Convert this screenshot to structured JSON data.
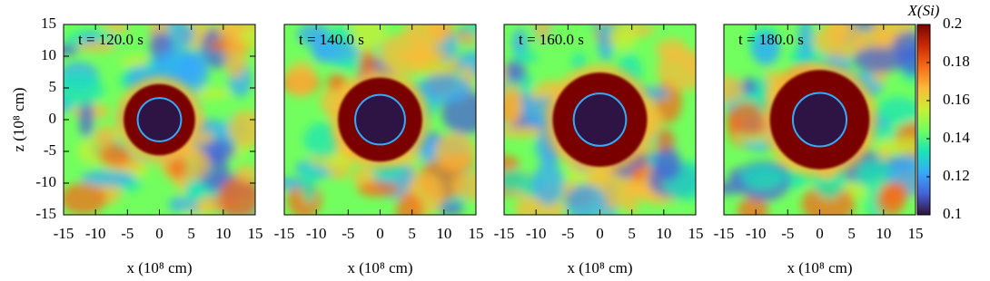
{
  "chart_data": [
    {
      "type": "heatmap",
      "annotation": "t = 120.0 s",
      "xlabel": "x (10⁸ cm)",
      "ylabel": "z (10⁸ cm)",
      "xlim": [
        -15,
        15
      ],
      "xticks": [
        -15,
        -10,
        -5,
        0,
        5,
        10,
        15
      ],
      "ylim": [
        -15,
        15
      ],
      "yticks": [
        -15,
        -10,
        -5,
        0,
        5,
        10,
        15
      ]
    },
    {
      "type": "heatmap",
      "annotation": "t = 140.0 s",
      "xlabel": "x (10⁸ cm)",
      "xlim": [
        -15,
        15
      ],
      "xticks": [
        -15,
        -10,
        -5,
        0,
        5,
        10,
        15
      ],
      "ylim": [
        -15,
        15
      ]
    },
    {
      "type": "heatmap",
      "annotation": "t = 160.0 s",
      "xlabel": "x (10⁸ cm)",
      "xlim": [
        -15,
        15
      ],
      "xticks": [
        -15,
        -10,
        -5,
        0,
        5,
        10,
        15
      ],
      "ylim": [
        -15,
        15
      ]
    },
    {
      "type": "heatmap",
      "annotation": "t = 180.0 s",
      "xlabel": "x (10⁸ cm)",
      "xlim": [
        -15,
        15
      ],
      "xticks": [
        -15,
        -10,
        -5,
        0,
        5,
        10,
        15
      ],
      "ylim": [
        -15,
        15
      ],
      "colorbar": {
        "label": "X(Si)",
        "lim": [
          0.1,
          0.2
        ],
        "ticks": [
          0.1,
          0.12,
          0.14,
          0.16,
          0.18,
          0.2
        ],
        "colors": [
          "#30123b",
          "#4662d7",
          "#36aaf9",
          "#1ae4b6",
          "#72fe5e",
          "#c8ef34",
          "#faba39",
          "#f66b19",
          "#ca2a04",
          "#7a0403"
        ]
      }
    }
  ]
}
